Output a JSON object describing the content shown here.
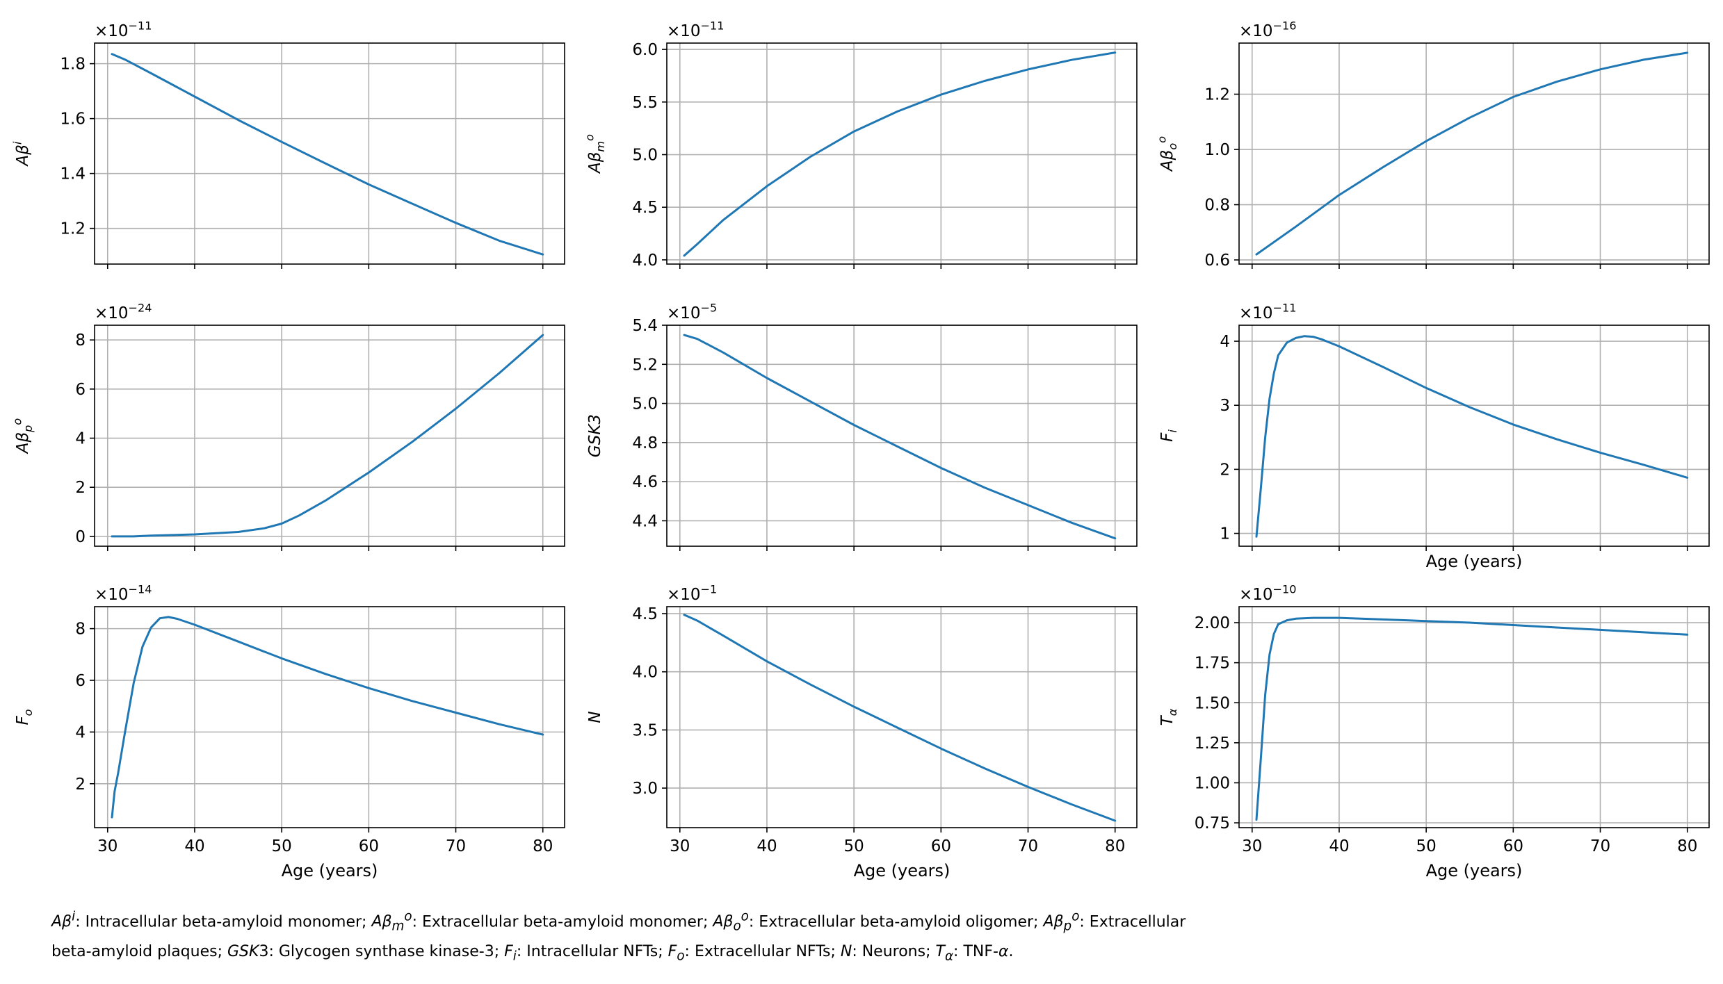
{
  "figure": {
    "line_color": "#1f77b4",
    "grid_color": "#b0b0b0"
  },
  "chart_data": [
    {
      "type": "line",
      "ylabel_html": "A&#946;<sup>i</sup>",
      "exponent": "&#215;10<sup>&#8722;11</sup>",
      "x": [
        30.5,
        32,
        35,
        40,
        45,
        50,
        55,
        60,
        65,
        70,
        75,
        80
      ],
      "y": [
        1.835,
        1.815,
        1.765,
        1.68,
        1.595,
        1.515,
        1.437,
        1.36,
        1.29,
        1.22,
        1.155,
        1.105
      ],
      "ylim": [
        1.07,
        1.875
      ],
      "yticks": [
        "1.2",
        "1.4",
        "1.6",
        "1.8"
      ],
      "xlabel": "",
      "show_xticklabels": false
    },
    {
      "type": "line",
      "ylabel_html": "A&#946;<sub>m</sub><sup>o</sup>",
      "exponent": "&#215;10<sup>&#8722;11</sup>",
      "x": [
        30.5,
        32,
        35,
        40,
        45,
        50,
        55,
        60,
        65,
        70,
        75,
        80
      ],
      "y": [
        4.04,
        4.15,
        4.38,
        4.7,
        4.98,
        5.22,
        5.41,
        5.57,
        5.7,
        5.81,
        5.9,
        5.97
      ],
      "ylim": [
        3.96,
        6.06
      ],
      "yticks": [
        "4.0",
        "4.5",
        "5.0",
        "5.5",
        "6.0"
      ],
      "xlabel": "",
      "show_xticklabels": false
    },
    {
      "type": "line",
      "ylabel_html": "A&#946;<sub>o</sub><sup>o</sup>",
      "exponent": "&#215;10<sup>&#8722;16</sup>",
      "x": [
        30.5,
        35,
        40,
        45,
        50,
        55,
        60,
        65,
        70,
        75,
        80
      ],
      "y": [
        0.62,
        0.72,
        0.835,
        0.935,
        1.03,
        1.115,
        1.19,
        1.245,
        1.29,
        1.325,
        1.35
      ],
      "ylim": [
        0.585,
        1.385
      ],
      "yticks": [
        "0.6",
        "0.8",
        "1.0",
        "1.2"
      ],
      "xlabel": "",
      "show_xticklabels": false
    },
    {
      "type": "line",
      "ylabel_html": "A&#946;<sub>p</sub><sup>o</sup>",
      "exponent": "&#215;10<sup>&#8722;24</sup>",
      "x": [
        30.5,
        33,
        35,
        40,
        45,
        48,
        50,
        52,
        55,
        60,
        65,
        70,
        75,
        80
      ],
      "y": [
        0,
        0,
        0.03,
        0.08,
        0.18,
        0.33,
        0.52,
        0.85,
        1.45,
        2.6,
        3.85,
        5.2,
        6.65,
        8.2
      ],
      "ylim": [
        -0.4,
        8.6
      ],
      "yticks": [
        "0",
        "2",
        "4",
        "6",
        "8"
      ],
      "xlabel": "",
      "show_xticklabels": false
    },
    {
      "type": "line",
      "ylabel_html": "GSK3",
      "exponent": "&#215;10<sup>&#8722;5</sup>",
      "x": [
        30.5,
        32,
        35,
        40,
        45,
        50,
        55,
        60,
        65,
        70,
        75,
        80
      ],
      "y": [
        5.35,
        5.33,
        5.26,
        5.13,
        5.01,
        4.89,
        4.78,
        4.67,
        4.57,
        4.48,
        4.39,
        4.31
      ],
      "ylim": [
        4.27,
        5.4
      ],
      "yticks": [
        "4.4",
        "4.6",
        "4.8",
        "5.0",
        "5.2",
        "5.4"
      ],
      "xlabel": "",
      "show_xticklabels": false
    },
    {
      "type": "line",
      "ylabel_html": "F<sub>i</sub>",
      "exponent": "&#215;10<sup>&#8722;11</sup>",
      "x": [
        30.5,
        31,
        31.5,
        32,
        32.5,
        33,
        34,
        35,
        36,
        37,
        38,
        40,
        45,
        50,
        55,
        60,
        65,
        70,
        75,
        80
      ],
      "y": [
        0.95,
        1.7,
        2.5,
        3.1,
        3.5,
        3.78,
        3.98,
        4.05,
        4.08,
        4.07,
        4.03,
        3.92,
        3.6,
        3.27,
        2.97,
        2.7,
        2.47,
        2.26,
        2.07,
        1.87
      ],
      "ylim": [
        0.8,
        4.25
      ],
      "yticks": [
        "1",
        "2",
        "3",
        "4"
      ],
      "xlabel": "Age (years)",
      "show_xticklabels": false
    },
    {
      "type": "line",
      "ylabel_html": "F<sub>o</sub>",
      "exponent": "&#215;10<sup>&#8722;14</sup>",
      "x": [
        30.5,
        30.8,
        31.2,
        32,
        33,
        34,
        35,
        36,
        37,
        38,
        40,
        45,
        50,
        55,
        60,
        65,
        70,
        75,
        80
      ],
      "y": [
        0.7,
        1.7,
        2.4,
        4.0,
        5.9,
        7.3,
        8.05,
        8.4,
        8.45,
        8.38,
        8.15,
        7.5,
        6.85,
        6.25,
        5.7,
        5.2,
        4.75,
        4.3,
        3.9
      ],
      "ylim": [
        0.3,
        8.85
      ],
      "yticks": [
        "2",
        "4",
        "6",
        "8"
      ],
      "xlabel": "Age (years)",
      "show_xticklabels": true
    },
    {
      "type": "line",
      "ylabel_html": "N",
      "exponent": "&#215;10<sup>&#8722;1</sup>",
      "x": [
        30.5,
        32,
        35,
        40,
        45,
        50,
        55,
        60,
        65,
        70,
        75,
        80
      ],
      "y": [
        4.49,
        4.44,
        4.31,
        4.09,
        3.89,
        3.7,
        3.52,
        3.34,
        3.17,
        3.01,
        2.86,
        2.72
      ],
      "ylim": [
        2.66,
        4.56
      ],
      "yticks": [
        "3.0",
        "3.5",
        "4.0",
        "4.5"
      ],
      "xlabel": "Age (years)",
      "show_xticklabels": true
    },
    {
      "type": "line",
      "ylabel_html": "T<sub>&#945;</sub>",
      "exponent": "&#215;10<sup>&#8722;10</sup>",
      "x": [
        30.5,
        31,
        31.5,
        32,
        32.5,
        33,
        34,
        35,
        37,
        40,
        45,
        50,
        55,
        60,
        65,
        70,
        75,
        80
      ],
      "y": [
        0.77,
        1.15,
        1.55,
        1.8,
        1.93,
        1.99,
        2.015,
        2.025,
        2.03,
        2.03,
        2.02,
        2.01,
        2.0,
        1.985,
        1.97,
        1.955,
        1.94,
        1.925
      ],
      "ylim": [
        0.72,
        2.1
      ],
      "yticks": [
        "0.75",
        "1.00",
        "1.25",
        "1.50",
        "1.75",
        "2.00"
      ],
      "xlabel": "Age (years)",
      "show_xticklabels": true
    }
  ],
  "x_axis": {
    "ticks": [
      "30",
      "40",
      "50",
      "60",
      "70",
      "80"
    ],
    "xlim": [
      28.5,
      82.5
    ]
  },
  "caption": {
    "line1_html": "<i>A&#946;<sup>i</sup></i>: Intracellular beta-amyloid monomer; <i>A&#946;<sub>m</sub><sup>o</sup></i>: Extracellular beta-amyloid monomer; <i>A&#946;<sub>o</sub><sup>o</sup></i>: Extracellular beta-amyloid oligomer; <i>A&#946;<sub>p</sub><sup>o</sup></i>: Extracellular",
    "line2_html": "beta-amyloid plaques; <i>GSK</i>3: Glycogen synthase kinase-3; <i>F<sub>i</sub></i>: Intracellular NFTs; <i>F<sub>o</sub></i>: Extracellular NFTs; <i>N</i>: Neurons; <i>T<sub>&#945;</sub></i>: TNF-<i>&#945;</i>."
  }
}
